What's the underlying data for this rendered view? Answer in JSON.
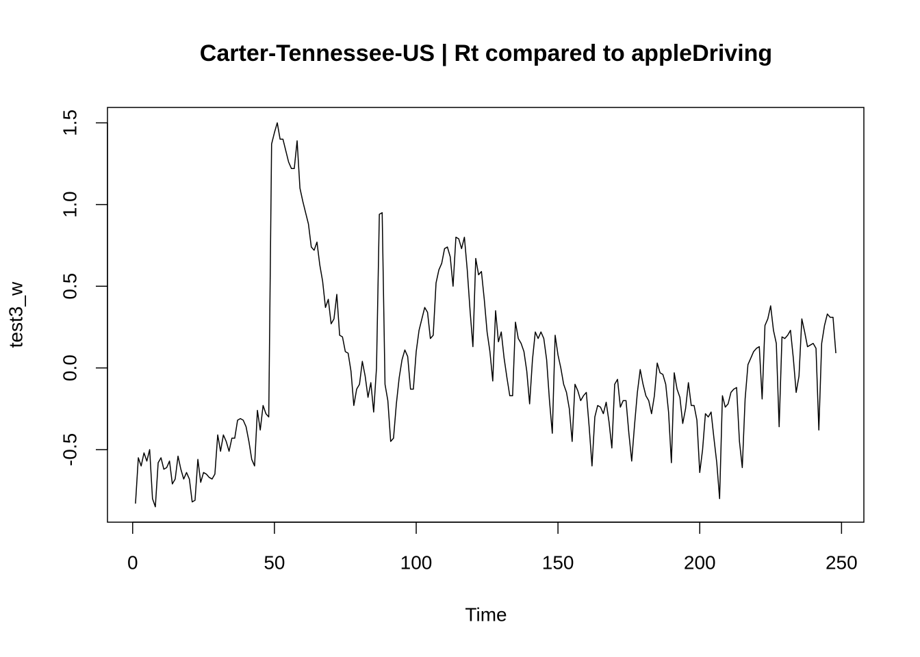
{
  "chart_data": {
    "type": "line",
    "title": "Carter-Tennessee-US | Rt compared to appleDriving",
    "xlabel": "Time",
    "ylabel": "test3_w",
    "color": "#000000",
    "xlim": [
      -8.88,
      257.88
    ],
    "ylim": [
      -0.944,
      1.594
    ],
    "xticks": [
      0,
      50,
      100,
      150,
      200,
      250
    ],
    "yticks": [
      {
        "value": -0.5,
        "label": "-0.5"
      },
      {
        "value": 0,
        "label": "0.0"
      },
      {
        "value": 0.5,
        "label": "0.5"
      },
      {
        "value": 1,
        "label": "1.0"
      },
      {
        "value": 1.5,
        "label": "1.5"
      }
    ],
    "x": [
      1,
      2,
      3,
      4,
      5,
      6,
      7,
      8,
      9,
      10,
      11,
      12,
      13,
      14,
      15,
      16,
      17,
      18,
      19,
      20,
      21,
      22,
      23,
      24,
      25,
      26,
      27,
      28,
      29,
      30,
      31,
      32,
      33,
      34,
      35,
      36,
      37,
      38,
      39,
      40,
      41,
      42,
      43,
      44,
      45,
      46,
      47,
      48,
      49,
      50,
      51,
      52,
      53,
      54,
      55,
      56,
      57,
      58,
      59,
      60,
      61,
      62,
      63,
      64,
      65,
      66,
      67,
      68,
      69,
      70,
      71,
      72,
      73,
      74,
      75,
      76,
      77,
      78,
      79,
      80,
      81,
      82,
      83,
      84,
      85,
      86,
      87,
      88,
      89,
      90,
      91,
      92,
      93,
      94,
      95,
      96,
      97,
      98,
      99,
      100,
      101,
      102,
      103,
      104,
      105,
      106,
      107,
      108,
      109,
      110,
      111,
      112,
      113,
      114,
      115,
      116,
      117,
      118,
      119,
      120,
      121,
      122,
      123,
      124,
      125,
      126,
      127,
      128,
      129,
      130,
      131,
      132,
      133,
      134,
      135,
      136,
      137,
      138,
      139,
      140,
      141,
      142,
      143,
      144,
      145,
      146,
      147,
      148,
      149,
      150,
      151,
      152,
      153,
      154,
      155,
      156,
      157,
      158,
      159,
      160,
      161,
      162,
      163,
      164,
      165,
      166,
      167,
      168,
      169,
      170,
      171,
      172,
      173,
      174,
      175,
      176,
      177,
      178,
      179,
      180,
      181,
      182,
      183,
      184,
      185,
      186,
      187,
      188,
      189,
      190,
      191,
      192,
      193,
      194,
      195,
      196,
      197,
      198,
      199,
      200,
      201,
      202,
      203,
      204,
      205,
      206,
      207,
      208,
      209,
      210,
      211,
      212,
      213,
      214,
      215,
      216,
      217,
      218,
      219,
      220,
      221,
      222,
      223,
      224,
      225,
      226,
      227,
      228,
      229,
      230,
      231,
      232,
      233,
      234,
      235,
      236,
      237,
      238,
      239,
      240,
      241,
      242,
      243,
      244,
      245,
      246,
      247,
      248
    ],
    "values": [
      -0.83,
      -0.55,
      -0.6,
      -0.52,
      -0.57,
      -0.5,
      -0.8,
      -0.85,
      -0.58,
      -0.55,
      -0.62,
      -0.61,
      -0.57,
      -0.71,
      -0.68,
      -0.54,
      -0.62,
      -0.68,
      -0.64,
      -0.68,
      -0.82,
      -0.81,
      -0.56,
      -0.7,
      -0.64,
      -0.65,
      -0.67,
      -0.68,
      -0.65,
      -0.41,
      -0.51,
      -0.41,
      -0.45,
      -0.51,
      -0.43,
      -0.43,
      -0.32,
      -0.31,
      -0.32,
      -0.36,
      -0.45,
      -0.56,
      -0.6,
      -0.26,
      -0.38,
      -0.23,
      -0.28,
      -0.3,
      1.37,
      1.44,
      1.5,
      1.4,
      1.4,
      1.33,
      1.26,
      1.22,
      1.22,
      1.39,
      1.1,
      1.02,
      0.95,
      0.88,
      0.74,
      0.72,
      0.77,
      0.63,
      0.53,
      0.37,
      0.42,
      0.27,
      0.3,
      0.45,
      0.2,
      0.19,
      0.1,
      0.09,
      -0.02,
      -0.23,
      -0.13,
      -0.1,
      0.04,
      -0.05,
      -0.18,
      -0.09,
      -0.27,
      0,
      0.94,
      0.95,
      -0.1,
      -0.2,
      -0.45,
      -0.43,
      -0.22,
      -0.06,
      0.05,
      0.11,
      0.07,
      -0.13,
      -0.13,
      0.1,
      0.23,
      0.3,
      0.37,
      0.34,
      0.18,
      0.2,
      0.52,
      0.6,
      0.64,
      0.73,
      0.74,
      0.68,
      0.5,
      0.8,
      0.79,
      0.73,
      0.8,
      0.6,
      0.35,
      0.13,
      0.67,
      0.57,
      0.59,
      0.42,
      0.22,
      0.1,
      -0.08,
      0.35,
      0.16,
      0.22,
      0.06,
      -0.06,
      -0.17,
      -0.17,
      0.28,
      0.18,
      0.15,
      0.1,
      -0.02,
      -0.22,
      0.05,
      0.22,
      0.18,
      0.22,
      0.18,
      0.05,
      -0.2,
      -0.4,
      0.2,
      0.08,
      0,
      -0.1,
      -0.15,
      -0.25,
      -0.45,
      -0.1,
      -0.14,
      -0.2,
      -0.17,
      -0.15,
      -0.36,
      -0.6,
      -0.3,
      -0.23,
      -0.24,
      -0.28,
      -0.21,
      -0.33,
      -0.49,
      -0.1,
      -0.07,
      -0.24,
      -0.2,
      -0.2,
      -0.4,
      -0.57,
      -0.35,
      -0.15,
      -0.01,
      -0.1,
      -0.17,
      -0.2,
      -0.28,
      -0.17,
      0.03,
      -0.03,
      -0.04,
      -0.1,
      -0.27,
      -0.58,
      -0.03,
      -0.13,
      -0.18,
      -0.34,
      -0.25,
      -0.09,
      -0.23,
      -0.23,
      -0.32,
      -0.64,
      -0.5,
      -0.28,
      -0.3,
      -0.27,
      -0.43,
      -0.58,
      -0.8,
      -0.17,
      -0.24,
      -0.22,
      -0.15,
      -0.13,
      -0.12,
      -0.45,
      -0.61,
      -0.19,
      0.02,
      0.06,
      0.1,
      0.12,
      0.13,
      -0.19,
      0.26,
      0.3,
      0.38,
      0.23,
      0.15,
      -0.36,
      0.19,
      0.18,
      0.2,
      0.23,
      0.06,
      -0.15,
      -0.05,
      0.3,
      0.22,
      0.13,
      0.14,
      0.15,
      0.12,
      -0.38,
      0.15,
      0.26,
      0.33,
      0.31,
      0.31,
      0.09
    ]
  }
}
